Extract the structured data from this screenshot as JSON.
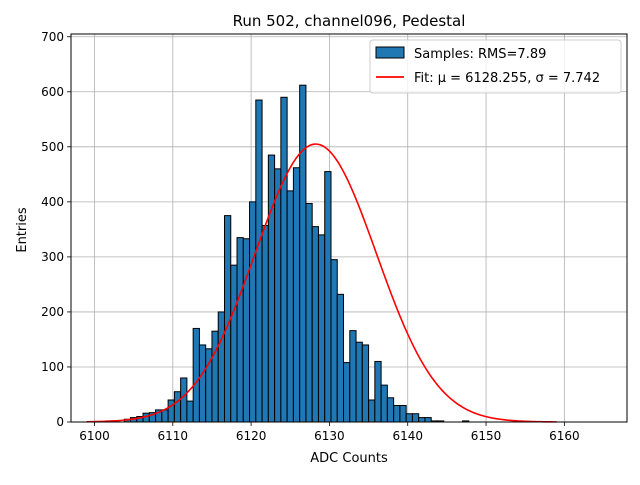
{
  "chart_data": {
    "type": "histogram",
    "title": "Run 502, channel096, Pedestal",
    "xlabel": "ADC Counts",
    "ylabel": "Entries",
    "xlim": [
      6097,
      6168
    ],
    "ylim": [
      0,
      705
    ],
    "xticks": [
      6100,
      6110,
      6120,
      6130,
      6140,
      6150,
      6160
    ],
    "yticks": [
      0,
      100,
      200,
      300,
      400,
      500,
      600,
      700
    ],
    "grid": true,
    "legend_position": "top-right",
    "bins": {
      "start": 6099,
      "width": 0.8,
      "counts": [
        0,
        0,
        0,
        2,
        2,
        0,
        5,
        8,
        10,
        16,
        17,
        22,
        22,
        40,
        55,
        80,
        38,
        170,
        140,
        133,
        165,
        200,
        375,
        285,
        335,
        333,
        400,
        585,
        357,
        485,
        460,
        590,
        420,
        462,
        612,
        397,
        355,
        340,
        455,
        295,
        232,
        108,
        166,
        145,
        140,
        40,
        110,
        67,
        44,
        30,
        30,
        15,
        15,
        8,
        8,
        2,
        2,
        0,
        0,
        0,
        2,
        0,
        0,
        0,
        0,
        0,
        0,
        0,
        0,
        0,
        0,
        0
      ]
    },
    "series": [
      {
        "name": "Samples",
        "legend_label": "Samples: RMS=7.89",
        "kind": "histogram",
        "color": "#1f77b4",
        "edge_color": "#000000"
      },
      {
        "name": "Fit",
        "legend_label": "Fit: μ = 6128.255, σ = 7.742",
        "kind": "gaussian",
        "color": "#ff0000",
        "mu": 6128.255,
        "sigma": 7.742,
        "amplitude": 505,
        "x_range": [
          6099,
          6159
        ]
      }
    ]
  }
}
